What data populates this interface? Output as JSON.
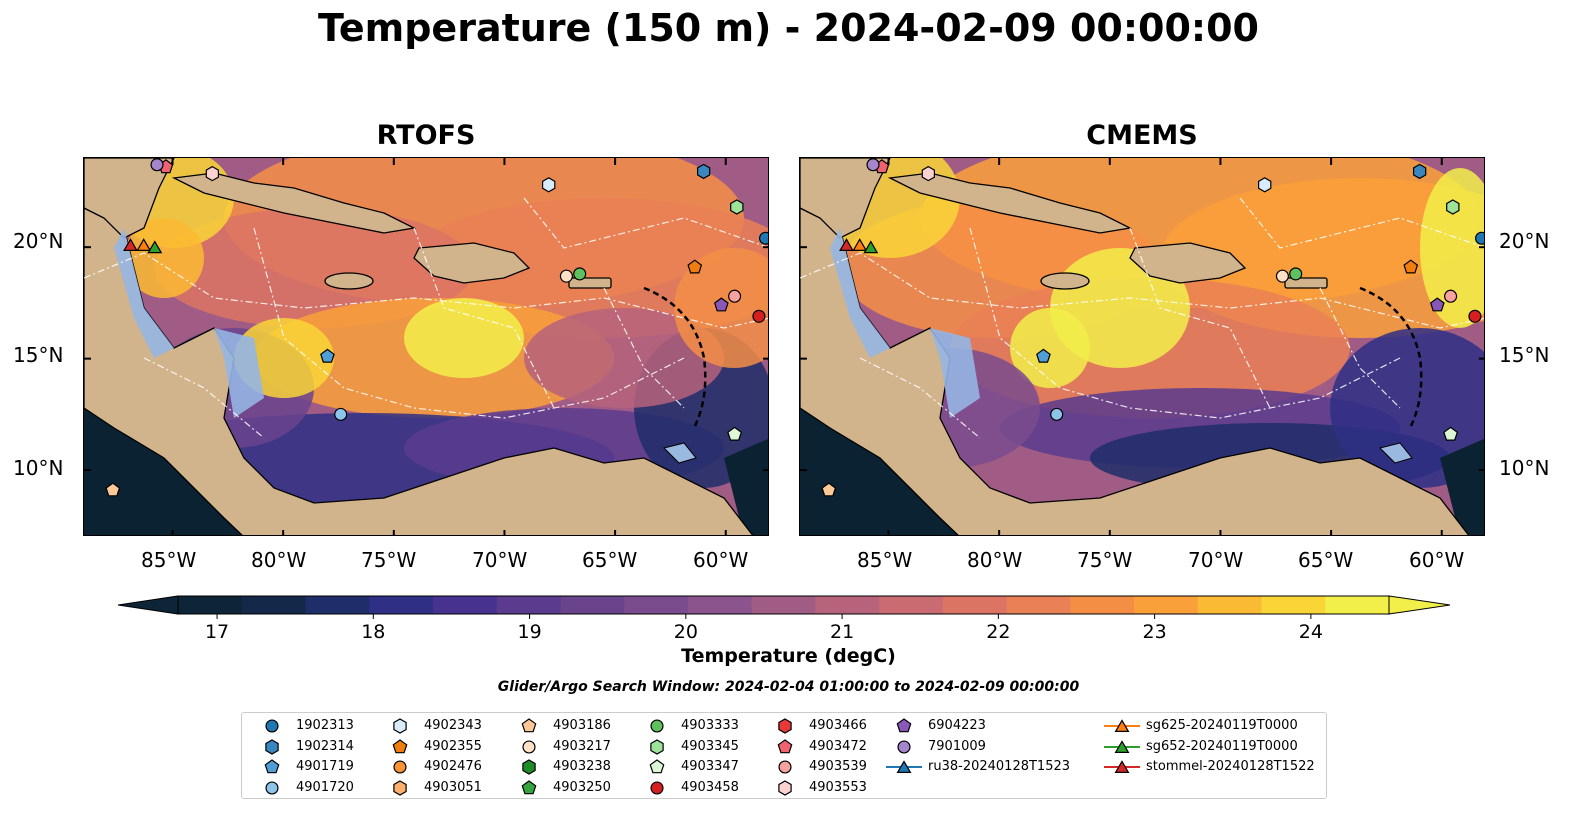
{
  "figure": {
    "title": "Temperature (150 m) - 2024-02-09 00:00:00",
    "panels": [
      {
        "title": "RTOFS"
      },
      {
        "title": "CMEMS"
      }
    ]
  },
  "axes": {
    "lon_labels": [
      "85°W",
      "80°W",
      "75°W",
      "70°W",
      "65°W",
      "60°W"
    ],
    "lat_labels": [
      "20°N",
      "15°N",
      "10°N"
    ],
    "lon_range": [
      -89,
      -58
    ],
    "lat_range": [
      7,
      24
    ]
  },
  "colorbar": {
    "label": "Temperature (degC)",
    "ticks": [
      "17",
      "18",
      "19",
      "20",
      "21",
      "22",
      "23",
      "24"
    ],
    "range": [
      16.75,
      24.5
    ],
    "extend": "both",
    "colors": [
      "#0e2437",
      "#14294a",
      "#1f2d6a",
      "#2e2f85",
      "#47328f",
      "#5a3b8e",
      "#6a438d",
      "#7a4b8d",
      "#8c548c",
      "#a05c84",
      "#b6637b",
      "#c96b70",
      "#dc7464",
      "#ea8055",
      "#f58e45",
      "#faa03a",
      "#fbba33",
      "#f9d537",
      "#f2ef4a"
    ]
  },
  "search_window": "Glider/Argo Search Window: 2024-02-04 01:00:00 to 2024-02-09 00:00:00",
  "legend": {
    "columns": [
      [
        {
          "label": "1902313",
          "marker": "circle",
          "color": "#1f77b4"
        },
        {
          "label": "1902314",
          "marker": "hexagon",
          "color": "#3a87c0"
        },
        {
          "label": "4901719",
          "marker": "pentagon",
          "color": "#4f9fd6"
        },
        {
          "label": "4901720",
          "marker": "circle",
          "color": "#8cc4ea"
        }
      ],
      [
        {
          "label": "4902343",
          "marker": "hexagon",
          "color": "#d9ecfb"
        },
        {
          "label": "4902355",
          "marker": "pentagon",
          "color": "#f07d10"
        },
        {
          "label": "4902476",
          "marker": "circle",
          "color": "#fb9432"
        },
        {
          "label": "4903051",
          "marker": "hexagon",
          "color": "#fbb06b"
        }
      ],
      [
        {
          "label": "4903186",
          "marker": "pentagon",
          "color": "#fcc897"
        },
        {
          "label": "4903217",
          "marker": "circle",
          "color": "#fde0c5"
        },
        {
          "label": "4903238",
          "marker": "hexagon",
          "color": "#1e8c27"
        },
        {
          "label": "4903250",
          "marker": "pentagon",
          "color": "#35a53d"
        }
      ],
      [
        {
          "label": "4903333",
          "marker": "circle",
          "color": "#5ec15e"
        },
        {
          "label": "4903345",
          "marker": "hexagon",
          "color": "#9ee39a"
        },
        {
          "label": "4903347",
          "marker": "pentagon",
          "color": "#ddf6d6"
        },
        {
          "label": "4903458",
          "marker": "circle",
          "color": "#d62020"
        }
      ],
      [
        {
          "label": "4903466",
          "marker": "hexagon",
          "color": "#e8393a"
        },
        {
          "label": "4903472",
          "marker": "pentagon",
          "color": "#f06270"
        },
        {
          "label": "4903539",
          "marker": "circle",
          "color": "#f8a2a0"
        },
        {
          "label": "4903553",
          "marker": "hexagon",
          "color": "#fcd2d0"
        }
      ],
      [
        {
          "label": "6904223",
          "marker": "pentagon",
          "color": "#8857b8"
        },
        {
          "label": "7901009",
          "marker": "circle",
          "color": "#a586cc"
        },
        {
          "label": "ru38-20240128T1523",
          "marker": "triangle-line",
          "color": "#1f77b4"
        }
      ],
      [
        {
          "label": "sg625-20240119T0000",
          "marker": "triangle-line",
          "color": "#ff7f0e"
        },
        {
          "label": "sg652-20240119T0000",
          "marker": "triangle-line",
          "color": "#2ca02c"
        },
        {
          "label": "stommel-20240128T1522",
          "marker": "triangle-line",
          "color": "#d62728"
        }
      ]
    ]
  },
  "markers": [
    {
      "id": "1902313",
      "lon": -58.2,
      "lat": 20.4
    },
    {
      "id": "6904223",
      "lon": -60.2,
      "lat": 17.4
    },
    {
      "id": "4903539",
      "lon": -59.6,
      "lat": 17.8
    },
    {
      "id": "4903458",
      "lon": -58.5,
      "lat": 16.9
    },
    {
      "id": "4903345",
      "lon": -59.5,
      "lat": 21.8
    },
    {
      "id": "4902355",
      "lon": -61.4,
      "lat": 19.1
    },
    {
      "id": "4903333",
      "lon": -66.6,
      "lat": 18.8
    },
    {
      "id": "4903217",
      "lon": -67.2,
      "lat": 18.7
    },
    {
      "id": "4902343",
      "lon": -68.0,
      "lat": 22.8
    },
    {
      "id": "1902314",
      "lon": -61.0,
      "lat": 23.4
    },
    {
      "id": "4901719",
      "lon": -78.0,
      "lat": 15.1
    },
    {
      "id": "4901720",
      "lon": -77.4,
      "lat": 12.5
    },
    {
      "id": "4903186",
      "lon": -87.7,
      "lat": 9.1
    },
    {
      "id": "4903347",
      "lon": -59.6,
      "lat": 11.6
    },
    {
      "id": "4903553",
      "lon": -83.2,
      "lat": 23.3
    },
    {
      "id": "4903472",
      "lon": -85.3,
      "lat": 23.6
    },
    {
      "id": "7901009",
      "lon": -85.7,
      "lat": 23.7
    },
    {
      "id": "stommel-20240128T1522",
      "lon": -86.9,
      "lat": 20.1
    },
    {
      "id": "sg625-20240119T0000",
      "lon": -86.3,
      "lat": 20.1
    },
    {
      "id": "sg652-20240119T0000",
      "lon": -85.8,
      "lat": 20.0
    }
  ]
}
